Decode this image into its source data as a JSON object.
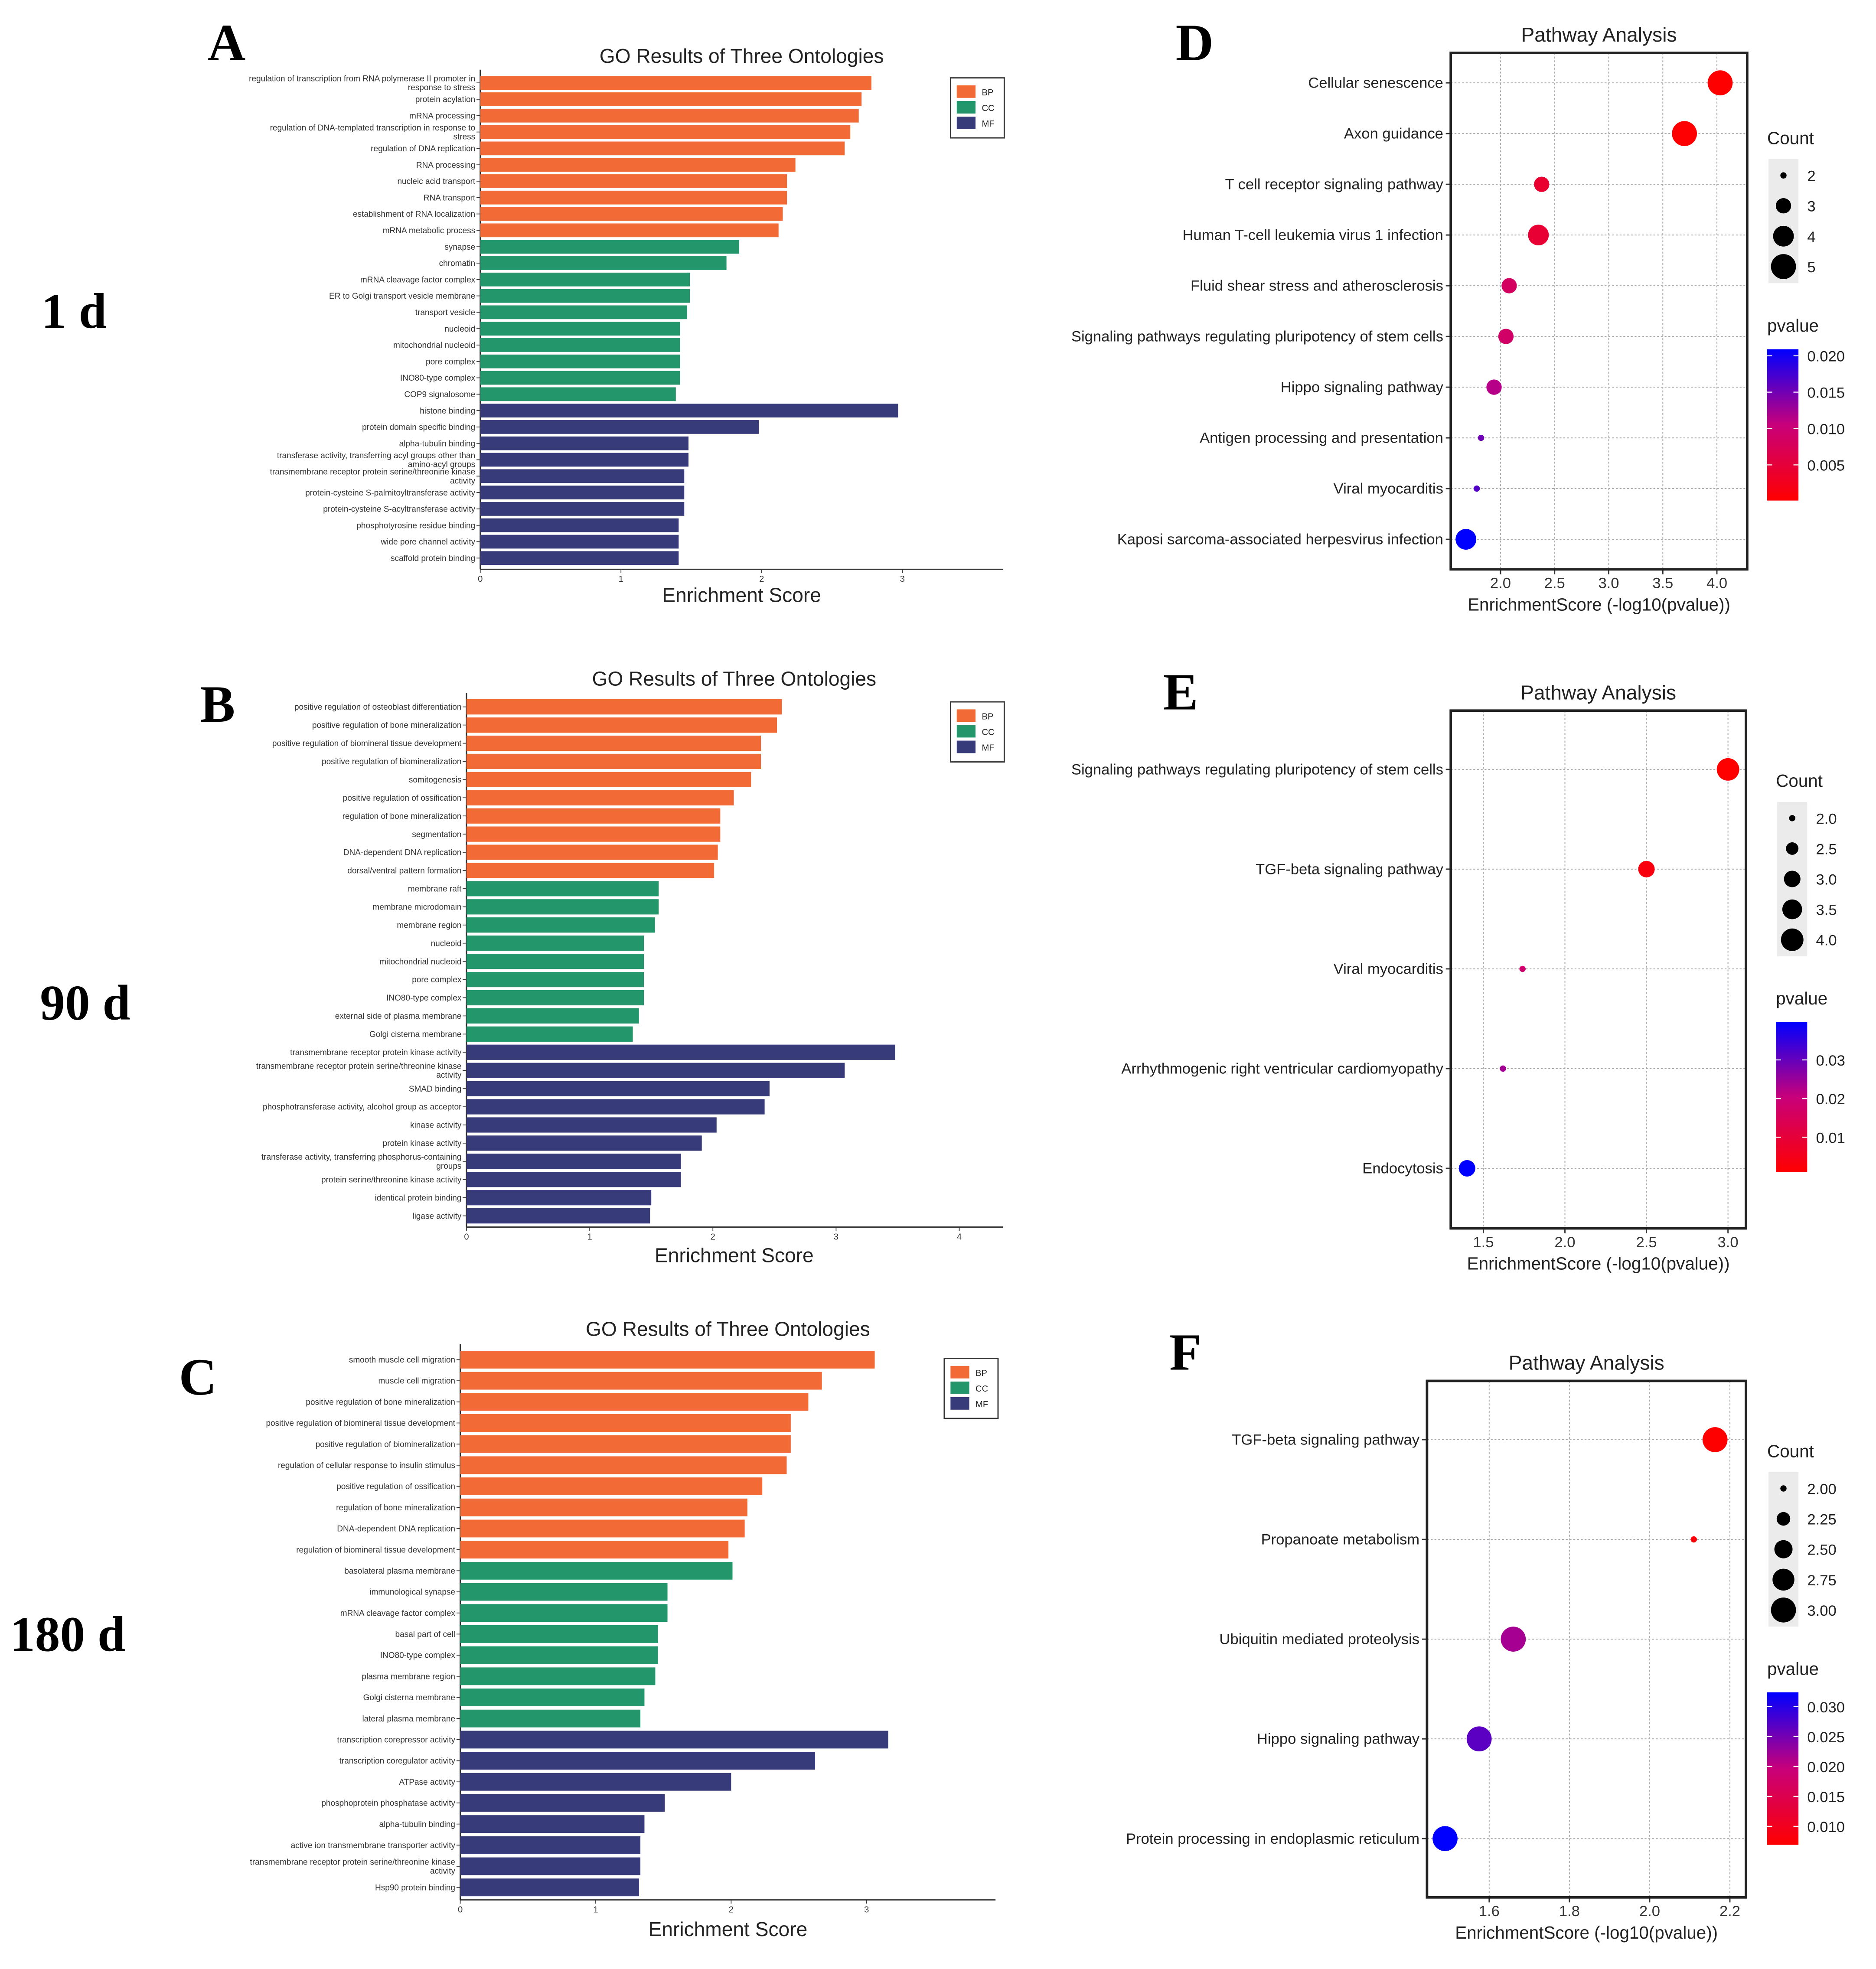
{
  "panels": [
    {
      "letter": "A",
      "time": "1 d"
    },
    {
      "letter": "B",
      "time": "90 d"
    },
    {
      "letter": "C",
      "time": "180 d"
    },
    {
      "letter": "D"
    },
    {
      "letter": "E"
    },
    {
      "letter": "F"
    }
  ],
  "colors": {
    "BP": "#f26a36",
    "CC": "#23976b",
    "MF": "#383b7a",
    "p_low": "#ff0000",
    "p_mid": "#c8007a",
    "p_high": "#0000ff"
  },
  "chart_data": [
    {
      "type": "bar",
      "orientation": "horizontal",
      "title": "GO Results of Three Ontologies",
      "xlabel": "Enrichment Score",
      "ylabel": "",
      "xlim": [
        0,
        3.7
      ],
      "xticks": [
        "0",
        "1",
        "2",
        "3"
      ],
      "legend": {
        "placement": "top-right",
        "entries": [
          "BP",
          "CC",
          "MF"
        ]
      },
      "categories": [
        "regulation of transcription from RNA polymerase II promoter in response to stress",
        "protein acylation",
        "mRNA processing",
        "regulation of DNA-templated transcription in response to stress",
        "regulation of DNA replication",
        "RNA processing",
        "nucleic acid transport",
        "RNA transport",
        "establishment of RNA localization",
        "mRNA metabolic process",
        "synapse",
        "chromatin",
        "mRNA cleavage factor complex",
        "ER to Golgi transport vesicle membrane",
        "transport vesicle",
        "nucleoid",
        "mitochondrial nucleoid",
        "pore complex",
        "INO80-type complex",
        "COP9 signalosome",
        "histone binding",
        "protein domain specific binding",
        "alpha-tubulin binding",
        "transferase activity, transferring acyl groups other than amino-acyl groups",
        "transmembrane receptor protein serine/threonine kinase activity",
        "protein-cysteine S-palmitoyltransferase activity",
        "protein-cysteine S-acyltransferase activity",
        "phosphotyrosine residue binding",
        "wide pore channel activity",
        "scaffold protein binding"
      ],
      "ontology": [
        "BP",
        "BP",
        "BP",
        "BP",
        "BP",
        "BP",
        "BP",
        "BP",
        "BP",
        "BP",
        "CC",
        "CC",
        "CC",
        "CC",
        "CC",
        "CC",
        "CC",
        "CC",
        "CC",
        "CC",
        "MF",
        "MF",
        "MF",
        "MF",
        "MF",
        "MF",
        "MF",
        "MF",
        "MF",
        "MF"
      ],
      "values": [
        2.78,
        2.71,
        2.69,
        2.63,
        2.59,
        2.24,
        2.18,
        2.18,
        2.15,
        2.12,
        1.84,
        1.75,
        1.49,
        1.49,
        1.47,
        1.42,
        1.42,
        1.42,
        1.42,
        1.39,
        2.97,
        1.98,
        1.48,
        1.48,
        1.45,
        1.45,
        1.45,
        1.41,
        1.41,
        1.41
      ]
    },
    {
      "type": "bar",
      "orientation": "horizontal",
      "title": "GO Results of Three Ontologies",
      "xlabel": "Enrichment Score",
      "ylabel": "",
      "xlim": [
        0,
        4.35
      ],
      "xticks": [
        "0",
        "1",
        "2",
        "3",
        "4"
      ],
      "legend": {
        "placement": "top-right",
        "entries": [
          "BP",
          "CC",
          "MF"
        ]
      },
      "categories": [
        "positive regulation of osteoblast differentiation",
        "positive regulation of bone mineralization",
        "positive regulation of biomineral tissue development",
        "positive regulation of biomineralization",
        "somitogenesis",
        "positive regulation of ossification",
        "regulation of bone mineralization",
        "segmentation",
        "DNA-dependent DNA replication",
        "dorsal/ventral pattern formation",
        "membrane raft",
        "membrane microdomain",
        "membrane region",
        "nucleoid",
        "mitochondrial nucleoid",
        "pore complex",
        "INO80-type complex",
        "external side of plasma membrane",
        "Golgi cisterna membrane",
        "transmembrane receptor protein kinase activity",
        "transmembrane receptor protein serine/threonine kinase activity",
        "SMAD binding",
        "phosphotransferase activity, alcohol group as acceptor",
        "kinase activity",
        "protein kinase activity",
        "transferase activity, transferring phosphorus-containing groups",
        "protein serine/threonine kinase activity",
        "identical protein binding",
        "ligase activity"
      ],
      "ontology": [
        "BP",
        "BP",
        "BP",
        "BP",
        "BP",
        "BP",
        "BP",
        "BP",
        "BP",
        "BP",
        "CC",
        "CC",
        "CC",
        "CC",
        "CC",
        "CC",
        "CC",
        "CC",
        "CC",
        "MF",
        "MF",
        "MF",
        "MF",
        "MF",
        "MF",
        "MF",
        "MF",
        "MF",
        "MF"
      ],
      "values": [
        2.56,
        2.52,
        2.39,
        2.39,
        2.31,
        2.17,
        2.06,
        2.06,
        2.04,
        2.01,
        1.56,
        1.56,
        1.53,
        1.44,
        1.44,
        1.44,
        1.44,
        1.4,
        1.35,
        3.48,
        3.07,
        2.46,
        2.42,
        2.03,
        1.91,
        1.74,
        1.74,
        1.5,
        1.49
      ]
    },
    {
      "type": "bar",
      "orientation": "horizontal",
      "title": "GO Results of Three Ontologies",
      "xlabel": "Enrichment Score",
      "ylabel": "",
      "xlim": [
        0,
        3.94
      ],
      "xticks": [
        "0",
        "1",
        "2",
        "3"
      ],
      "legend": {
        "placement": "top-right",
        "entries": [
          "BP",
          "CC",
          "MF"
        ]
      },
      "categories": [
        "smooth muscle cell migration",
        "muscle cell migration",
        "positive regulation of bone mineralization",
        "positive regulation of biomineral tissue development",
        "positive regulation of biomineralization",
        "regulation of cellular response to insulin stimulus",
        "positive regulation of ossification",
        "regulation of bone mineralization",
        "DNA-dependent DNA replication",
        "regulation of biomineral tissue development",
        "basolateral plasma membrane",
        "immunological synapse",
        "mRNA cleavage factor complex",
        "basal part of cell",
        "INO80-type complex",
        "plasma membrane region",
        "Golgi cisterna membrane",
        "lateral plasma membrane",
        "transcription corepressor activity",
        "transcription coregulator activity",
        "ATPase activity",
        "phosphoprotein phosphatase activity",
        "alpha-tubulin binding",
        "active ion transmembrane transporter activity",
        "transmembrane receptor protein serine/threonine kinase activity",
        "Hsp90 protein binding"
      ],
      "ontology": [
        "BP",
        "BP",
        "BP",
        "BP",
        "BP",
        "BP",
        "BP",
        "BP",
        "BP",
        "BP",
        "CC",
        "CC",
        "CC",
        "CC",
        "CC",
        "CC",
        "CC",
        "CC",
        "MF",
        "MF",
        "MF",
        "MF",
        "MF",
        "MF",
        "MF",
        "MF"
      ],
      "values": [
        3.06,
        2.67,
        2.57,
        2.44,
        2.44,
        2.41,
        2.23,
        2.12,
        2.1,
        1.98,
        2.01,
        1.53,
        1.53,
        1.46,
        1.46,
        1.44,
        1.36,
        1.33,
        3.16,
        2.62,
        2.0,
        1.51,
        1.36,
        1.33,
        1.33,
        1.32
      ]
    },
    {
      "type": "scatter",
      "title": "Pathway Analysis",
      "xlabel": "EnrichmentScore (-log10(pvalue))",
      "xlim": [
        1.54,
        4.28
      ],
      "xticks": [
        2.0,
        2.5,
        3.0,
        3.5,
        4.0
      ],
      "grid": true,
      "size_legend": {
        "title": "Count",
        "values": [
          "2",
          "3",
          "4",
          "5"
        ]
      },
      "color_legend": {
        "title": "pvalue",
        "ticks": [
          "0.020",
          "0.015",
          "0.010",
          "0.005"
        ]
      },
      "categories": [
        "Cellular senescence",
        "Axon guidance",
        "T cell receptor signaling pathway",
        "Human T-cell leukemia virus 1 infection",
        "Fluid shear stress and atherosclerosis",
        "Signaling pathways regulating pluripotency of stem cells",
        "Hippo signaling pathway",
        "Antigen processing and presentation",
        "Viral myocarditis",
        "Kaposi sarcoma-associated herpesvirus infection"
      ],
      "x": [
        4.03,
        3.7,
        2.38,
        2.35,
        2.08,
        2.05,
        1.94,
        1.82,
        1.78,
        1.68
      ],
      "count": [
        5,
        5,
        3,
        4,
        3,
        3,
        3,
        2,
        2,
        4
      ],
      "pvalue": [
        0.0001,
        0.0002,
        0.0042,
        0.0045,
        0.0083,
        0.0089,
        0.0115,
        0.0151,
        0.0166,
        0.0209
      ]
    },
    {
      "type": "scatter",
      "title": "Pathway Analysis",
      "xlabel": "EnrichmentScore (-log10(pvalue))",
      "xlim": [
        1.3,
        3.11
      ],
      "xticks": [
        1.5,
        2.0,
        2.5,
        3.0
      ],
      "grid": true,
      "size_legend": {
        "title": "Count",
        "values": [
          "2.0",
          "2.5",
          "3.0",
          "3.5",
          "4.0"
        ]
      },
      "color_legend": {
        "title": "pvalue",
        "ticks": [
          "0.03",
          "0.02",
          "0.01"
        ]
      },
      "categories": [
        "Signaling pathways regulating pluripotency of stem cells",
        "TGF-beta signaling pathway",
        "Viral myocarditis",
        "Arrhythmogenic right ventricular cardiomyopathy",
        "Endocytosis"
      ],
      "x": [
        3.0,
        2.5,
        1.74,
        1.62,
        1.4
      ],
      "count": [
        4,
        3,
        2,
        2,
        3
      ],
      "pvalue": [
        0.001,
        0.0032,
        0.0182,
        0.024,
        0.0398
      ]
    },
    {
      "type": "scatter",
      "title": "Pathway Analysis",
      "xlabel": "EnrichmentScore (-log10(pvalue))",
      "xlim": [
        1.445,
        2.24
      ],
      "xticks": [
        1.6,
        1.8,
        2.0,
        2.2
      ],
      "grid": true,
      "size_legend": {
        "title": "Count",
        "values": [
          "2.00",
          "2.25",
          "2.50",
          "2.75",
          "3.00"
        ]
      },
      "color_legend": {
        "title": "pvalue",
        "ticks": [
          "0.030",
          "0.025",
          "0.020",
          "0.015",
          "0.010"
        ]
      },
      "categories": [
        "TGF-beta signaling pathway",
        "Propanoate metabolism",
        "Ubiquitin mediated proteolysis",
        "Hippo signaling pathway",
        "Protein processing in endoplasmic reticulum"
      ],
      "x": [
        2.163,
        2.11,
        1.66,
        1.575,
        1.49
      ],
      "count": [
        3,
        2,
        3,
        3,
        3
      ],
      "pvalue": [
        0.0069,
        0.0078,
        0.0219,
        0.0266,
        0.0324
      ]
    }
  ]
}
